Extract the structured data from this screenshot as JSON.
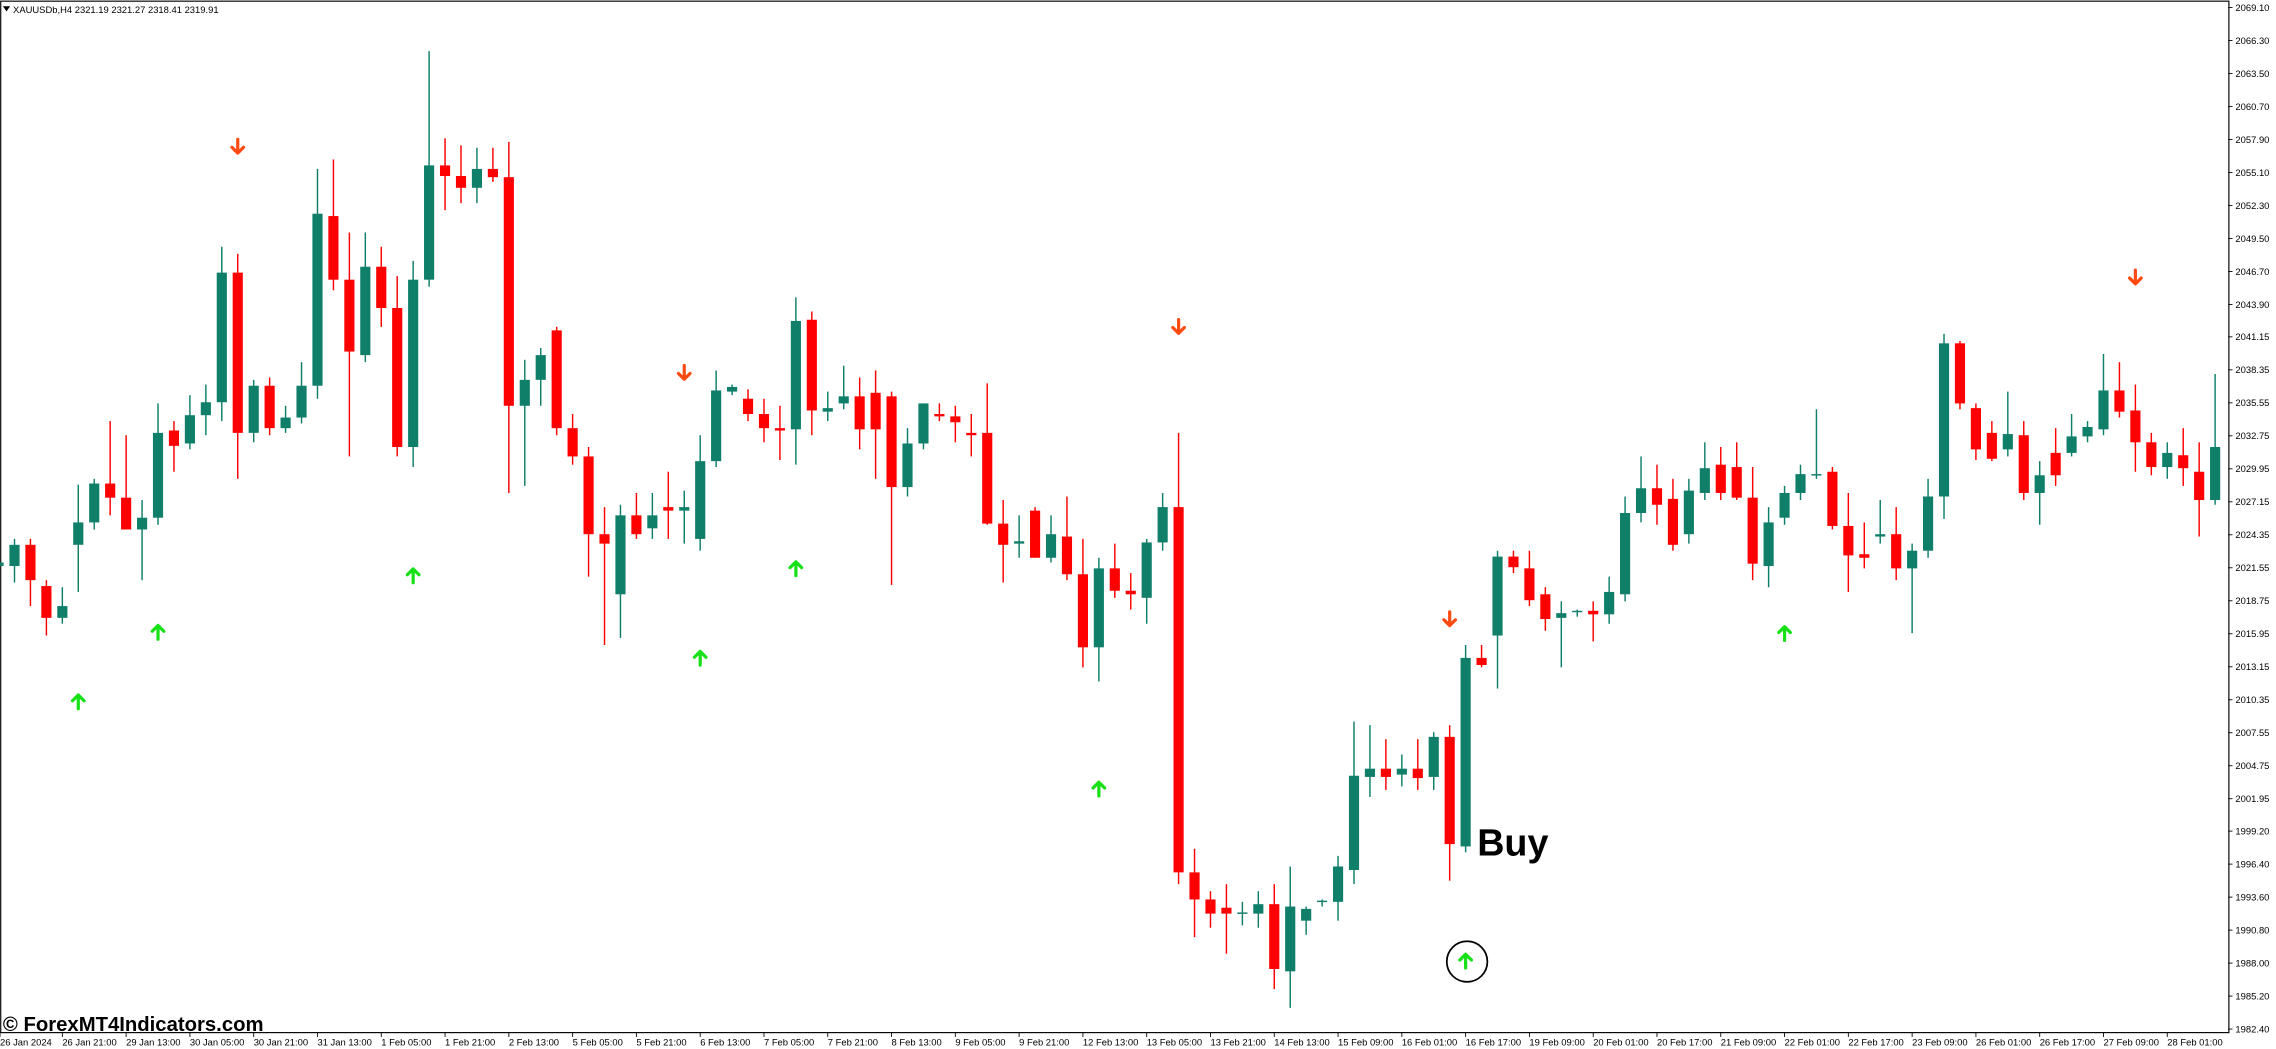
{
  "chart_data": {
    "type": "candlestick",
    "symbol_info": "XAUUSDb,H4 2321.19 2321.27 2318.41 2319.91",
    "watermark": "© ForexMT4Indicators.com",
    "annotation": "Buy",
    "up_color": "#0f7f6a",
    "down_color": "#ff0000",
    "categories": [
      "26 Jan 2024",
      null,
      null,
      null,
      "26 Jan 21:00",
      null,
      null,
      null,
      "29 Jan 13:00",
      null,
      null,
      null,
      "30 Jan 05:00",
      null,
      null,
      null,
      "30 Jan 21:00",
      null,
      null,
      null,
      "31 Jan 13:00",
      null,
      null,
      null,
      "1 Feb 05:00",
      null,
      null,
      null,
      "1 Feb 21:00",
      null,
      null,
      null,
      "2 Feb 13:00",
      null,
      null,
      null,
      "5 Feb 05:00",
      null,
      null,
      null,
      "5 Feb 21:00",
      null,
      null,
      null,
      "6 Feb 13:00",
      null,
      null,
      null,
      "7 Feb 05:00",
      null,
      null,
      null,
      "7 Feb 21:00",
      null,
      null,
      null,
      "8 Feb 13:00",
      null,
      null,
      null,
      "9 Feb 05:00",
      null,
      null,
      null,
      "9 Feb 21:00",
      null,
      null,
      null,
      "12 Feb 13:00",
      null,
      null,
      null,
      "13 Feb 05:00",
      null,
      null,
      null,
      "13 Feb 21:00",
      null,
      null,
      null,
      "14 Feb 13:00",
      null,
      null,
      null,
      "15 Feb 09:00",
      null,
      null,
      null,
      "16 Feb 01:00",
      null,
      null,
      null,
      "16 Feb 17:00",
      null,
      null,
      null,
      "19 Feb 09:00",
      null,
      null,
      null,
      "20 Feb 01:00",
      null,
      null,
      null,
      "20 Feb 17:00",
      null,
      null,
      null,
      "21 Feb 09:00",
      null,
      null,
      null,
      "22 Feb 01:00",
      null,
      null,
      null,
      "22 Feb 17:00",
      null,
      null,
      null,
      "23 Feb 09:00",
      null,
      null,
      null,
      "26 Feb 01:00",
      null,
      null,
      null,
      "26 Feb 17:00",
      null,
      null,
      null,
      "27 Feb 09:00",
      null,
      null,
      null,
      "28 Feb 01:00",
      null,
      null,
      null
    ],
    "open": [
      2021.7,
      2021.7,
      2023.5,
      2020.0,
      2017.3,
      2023.5,
      2025.4,
      2028.7,
      2027.5,
      2024.8,
      2025.8,
      2033.2,
      2032.1,
      2034.5,
      2035.6,
      2046.6,
      2033.0,
      2037.0,
      2033.4,
      2034.3,
      2037.0,
      2051.4,
      2046.0,
      2039.6,
      2047.1,
      2043.6,
      2031.8,
      2046.0,
      2055.7,
      2054.8,
      2053.8,
      2055.4,
      2054.7,
      2035.3,
      2037.5,
      2041.7,
      2033.4,
      2031.0,
      2024.4,
      2019.3,
      2026.0,
      2024.9,
      2026.7,
      2026.4,
      2024.0,
      2030.6,
      2036.5,
      2035.9,
      2034.6,
      2033.4,
      2033.3,
      2042.6,
      2034.8,
      2035.5,
      2036.1,
      2036.4,
      2036.1,
      2028.4,
      2032.1,
      2034.6,
      2034.4,
      2033.0,
      2033.0,
      2025.3,
      2023.6,
      2026.4,
      2022.4,
      2024.2,
      2021.0,
      2014.8,
      2021.5,
      2019.6,
      2019.0,
      2023.7,
      2026.7,
      1995.7,
      1993.4,
      1992.7,
      1992.2,
      1992.2,
      1993.0,
      1987.3,
      1991.6,
      1993.2,
      1993.2,
      1995.9,
      2003.8,
      2004.5,
      2004.0,
      2004.5,
      2003.8,
      2007.2,
      1997.9,
      2013.9,
      2015.8,
      2022.5,
      2021.5,
      2019.3,
      2017.3,
      2017.8,
      2017.9,
      2017.6,
      2019.3,
      2026.2,
      2028.3,
      2027.4,
      2024.4,
      2027.9,
      2030.3,
      2030.1,
      2027.5,
      2021.7,
      2025.8,
      2027.9,
      2029.4,
      2029.7,
      2025.1,
      2022.7,
      2024.2,
      2024.4,
      2021.5,
      2023.0,
      2027.6,
      2040.6,
      2035.1,
      2033.0,
      2031.6,
      2032.8,
      2027.9,
      2031.3,
      2031.3,
      2032.7,
      2033.3,
      2036.6,
      2034.9,
      2032.2,
      2030.1,
      2031.1,
      2029.7,
      2027.3
    ],
    "high": [
      2022.3,
      2024.0,
      2024.0,
      2020.5,
      2019.9,
      2028.6,
      2029.1,
      2034.0,
      2032.8,
      2027.3,
      2035.5,
      2034.0,
      2036.2,
      2037.1,
      2048.8,
      2048.2,
      2037.5,
      2037.7,
      2035.3,
      2039.0,
      2055.4,
      2056.2,
      2050.0,
      2050.0,
      2048.8,
      2046.3,
      2047.6,
      2065.4,
      2058.0,
      2057.4,
      2057.2,
      2057.2,
      2057.7,
      2039.2,
      2040.2,
      2042.0,
      2034.6,
      2031.8,
      2026.7,
      2026.9,
      2027.9,
      2027.9,
      2029.7,
      2028.1,
      2032.8,
      2038.3,
      2037.1,
      2036.7,
      2035.9,
      2035.3,
      2044.5,
      2043.3,
      2036.5,
      2038.7,
      2037.7,
      2038.3,
      2036.5,
      2033.4,
      2035.5,
      2035.5,
      2035.3,
      2034.6,
      2037.2,
      2027.3,
      2026.0,
      2026.7,
      2026.0,
      2027.6,
      2024.0,
      2022.4,
      2023.6,
      2021.1,
      2024.0,
      2027.9,
      2033.0,
      1997.7,
      1994.1,
      1994.7,
      1993.2,
      1994.1,
      1994.7,
      1996.2,
      1992.8,
      1993.4,
      1997.1,
      2008.5,
      2008.2,
      2007.0,
      2005.7,
      2007.0,
      2007.6,
      2008.2,
      2015.0,
      2015.0,
      2023.0,
      2023.0,
      2023.0,
      2019.9,
      2018.7,
      2018.0,
      2018.7,
      2020.8,
      2027.6,
      2031.0,
      2030.3,
      2029.1,
      2029.1,
      2032.2,
      2031.8,
      2032.2,
      2030.1,
      2026.7,
      2028.5,
      2030.3,
      2035.0,
      2030.1,
      2027.9,
      2025.4,
      2027.3,
      2026.7,
      2023.6,
      2029.1,
      2041.4,
      2040.8,
      2035.5,
      2034.0,
      2036.5,
      2034.0,
      2030.6,
      2033.4,
      2034.6,
      2034.0,
      2039.7,
      2039.0,
      2037.1,
      2033.0,
      2032.2,
      2033.4,
      2032.2,
      2038.0
    ],
    "low": [
      2021.1,
      2020.3,
      2018.3,
      2015.8,
      2016.8,
      2019.5,
      2024.8,
      2026.0,
      2024.8,
      2020.5,
      2025.2,
      2029.7,
      2031.6,
      2032.8,
      2034.0,
      2029.1,
      2032.2,
      2032.8,
      2033.0,
      2033.8,
      2035.9,
      2045.1,
      2031.0,
      2039.0,
      2042.0,
      2031.0,
      2030.1,
      2045.4,
      2051.9,
      2052.5,
      2052.5,
      2054.3,
      2027.9,
      2028.5,
      2035.3,
      2032.8,
      2030.3,
      2020.8,
      2015.0,
      2015.6,
      2024.0,
      2024.0,
      2024.0,
      2023.6,
      2023.0,
      2030.1,
      2036.2,
      2034.0,
      2032.2,
      2030.7,
      2030.3,
      2032.8,
      2034.0,
      2035.0,
      2031.6,
      2029.1,
      2020.1,
      2027.6,
      2031.6,
      2034.0,
      2032.2,
      2031.0,
      2025.2,
      2020.3,
      2022.4,
      2022.4,
      2022.0,
      2020.5,
      2013.1,
      2011.9,
      2019.0,
      2018.0,
      2016.8,
      2023.0,
      1994.7,
      1990.2,
      1991.0,
      1988.8,
      1991.2,
      1991.0,
      1985.8,
      1984.2,
      1990.4,
      1992.8,
      1991.6,
      1994.7,
      2002.1,
      2002.7,
      2003.0,
      2002.7,
      2002.7,
      1995.0,
      1997.4,
      2013.1,
      2011.3,
      2021.1,
      2018.3,
      2016.2,
      2013.1,
      2017.4,
      2015.3,
      2016.8,
      2018.7,
      2025.4,
      2025.2,
      2023.0,
      2023.6,
      2027.3,
      2027.3,
      2027.3,
      2020.5,
      2019.9,
      2025.2,
      2027.3,
      2029.1,
      2024.8,
      2019.5,
      2021.5,
      2023.6,
      2020.5,
      2016.0,
      2022.4,
      2025.7,
      2035.0,
      2030.7,
      2030.6,
      2031.0,
      2027.3,
      2025.2,
      2028.5,
      2031.0,
      2032.2,
      2032.8,
      2034.3,
      2029.7,
      2029.4,
      2029.1,
      2028.5,
      2024.2,
      2026.9
    ],
    "close": [
      2022.0,
      2023.5,
      2020.5,
      2017.3,
      2018.3,
      2025.4,
      2028.7,
      2027.5,
      2024.8,
      2025.8,
      2033.0,
      2031.9,
      2034.5,
      2035.6,
      2046.6,
      2033.0,
      2037.0,
      2033.4,
      2034.3,
      2037.0,
      2051.6,
      2046.0,
      2039.9,
      2047.1,
      2043.6,
      2031.8,
      2046.0,
      2055.7,
      2054.8,
      2053.8,
      2055.4,
      2054.7,
      2035.3,
      2037.5,
      2039.6,
      2033.4,
      2031.0,
      2024.4,
      2023.6,
      2026.0,
      2024.4,
      2026.0,
      2026.4,
      2026.7,
      2030.6,
      2036.6,
      2036.9,
      2034.6,
      2033.4,
      2033.2,
      2042.5,
      2034.9,
      2035.1,
      2036.1,
      2033.3,
      2033.3,
      2028.4,
      2032.1,
      2035.5,
      2034.4,
      2033.9,
      2032.8,
      2025.3,
      2023.5,
      2023.8,
      2022.4,
      2024.4,
      2021.0,
      2014.8,
      2021.5,
      2019.6,
      2019.3,
      2023.7,
      2026.7,
      1995.7,
      1993.4,
      1992.2,
      1992.2,
      1992.3,
      1993.0,
      1987.5,
      1992.8,
      1992.6,
      1993.3,
      1996.2,
      2003.9,
      2004.5,
      2003.8,
      2004.5,
      2003.7,
      2007.2,
      1998.1,
      2013.9,
      2013.3,
      2022.5,
      2021.6,
      2018.8,
      2017.2,
      2017.7,
      2017.9,
      2017.6,
      2019.5,
      2026.2,
      2028.3,
      2026.9,
      2023.5,
      2028.1,
      2030.0,
      2027.9,
      2027.5,
      2021.9,
      2025.4,
      2027.9,
      2029.5,
      2029.5,
      2025.1,
      2022.6,
      2022.4,
      2024.4,
      2021.5,
      2023.0,
      2027.6,
      2040.6,
      2035.5,
      2031.6,
      2030.8,
      2032.9,
      2027.9,
      2029.4,
      2029.4,
      2032.7,
      2033.5,
      2036.6,
      2034.8,
      2032.2,
      2030.1,
      2031.3,
      2030.0,
      2027.3,
      2031.8
    ],
    "up_arrows": {
      "color": "#16e016",
      "x": [
        5,
        10,
        26,
        44,
        50,
        69,
        92,
        112
      ],
      "values": [
        2010.2,
        2016.1,
        2020.9,
        2013.9,
        2021.5,
        2002.8,
        1988.2,
        2016.0
      ]
    },
    "down_arrows": {
      "color": "#ff4a12",
      "x": [
        15,
        43,
        74,
        91,
        134
      ],
      "values": [
        2057.3,
        2038.1,
        2042.0,
        2017.2,
        2046.2
      ]
    },
    "ylim": [
      1982.1,
      2069.7
    ],
    "yticks": [
      {
        "value": 2069.1,
        "label": "2069.10"
      },
      {
        "value": 2066.3,
        "label": "2066.30"
      },
      {
        "value": 2063.5,
        "label": "2063.50"
      },
      {
        "value": 2060.7,
        "label": "2060.70"
      },
      {
        "value": 2057.9,
        "label": "2057.90"
      },
      {
        "value": 2055.1,
        "label": "2055.10"
      },
      {
        "value": 2052.3,
        "label": "2052.30"
      },
      {
        "value": 2049.5,
        "label": "2049.50"
      },
      {
        "value": 2046.7,
        "label": "2046.70"
      },
      {
        "value": 2043.9,
        "label": "2043.90"
      },
      2041.15,
      2038.35,
      2035.55,
      2032.75,
      2029.95,
      2027.15,
      2024.35,
      2021.55,
      2018.75,
      2015.95,
      2013.15,
      2010.35,
      2007.55,
      2004.75,
      2001.95,
      {
        "value": 1999.2,
        "label": "1999.20"
      },
      {
        "value": 1996.4,
        "label": "1996.40"
      },
      {
        "value": 1993.6,
        "label": "1993.60"
      },
      {
        "value": 1990.8,
        "label": "1990.80"
      },
      {
        "value": 1988,
        "label": "1988.00"
      },
      {
        "value": 1985.2,
        "label": "1985.20"
      },
      {
        "value": 1982.4,
        "label": "1982.40"
      }
    ]
  }
}
